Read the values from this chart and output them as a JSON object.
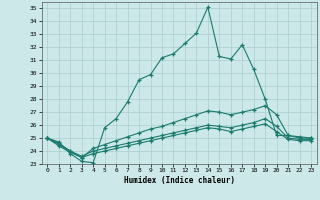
{
  "xlabel": "Humidex (Indice chaleur)",
  "background_color": "#cce8e8",
  "line_color": "#1a7a6e",
  "grid_color": "#aacece",
  "ylim": [
    23,
    35.5
  ],
  "xlim": [
    -0.5,
    23.5
  ],
  "yticks": [
    23,
    24,
    25,
    26,
    27,
    28,
    29,
    30,
    31,
    32,
    33,
    34,
    35
  ],
  "xticks": [
    0,
    1,
    2,
    3,
    4,
    5,
    6,
    7,
    8,
    9,
    10,
    11,
    12,
    13,
    14,
    15,
    16,
    17,
    18,
    19,
    20,
    21,
    22,
    23
  ],
  "series": [
    [
      25.0,
      24.7,
      23.8,
      23.2,
      23.1,
      25.8,
      26.5,
      27.8,
      29.5,
      29.9,
      31.2,
      31.5,
      32.3,
      33.1,
      35.1,
      31.3,
      31.1,
      32.2,
      30.3,
      28.0,
      25.2,
      25.2,
      25.1,
      25.0
    ],
    [
      25.0,
      24.6,
      24.0,
      23.5,
      24.2,
      24.5,
      24.8,
      25.1,
      25.4,
      25.7,
      25.9,
      26.2,
      26.5,
      26.8,
      27.1,
      27.0,
      26.8,
      27.0,
      27.2,
      27.5,
      26.8,
      25.2,
      25.0,
      25.0
    ],
    [
      25.0,
      24.5,
      24.0,
      23.6,
      24.0,
      24.2,
      24.4,
      24.6,
      24.8,
      25.0,
      25.2,
      25.4,
      25.6,
      25.8,
      26.0,
      25.9,
      25.8,
      26.0,
      26.2,
      26.5,
      25.9,
      25.0,
      24.9,
      24.9
    ],
    [
      25.0,
      24.4,
      23.9,
      23.5,
      23.8,
      24.0,
      24.2,
      24.4,
      24.6,
      24.8,
      25.0,
      25.2,
      25.4,
      25.6,
      25.8,
      25.7,
      25.5,
      25.7,
      25.9,
      26.1,
      25.5,
      24.9,
      24.8,
      24.8
    ]
  ]
}
